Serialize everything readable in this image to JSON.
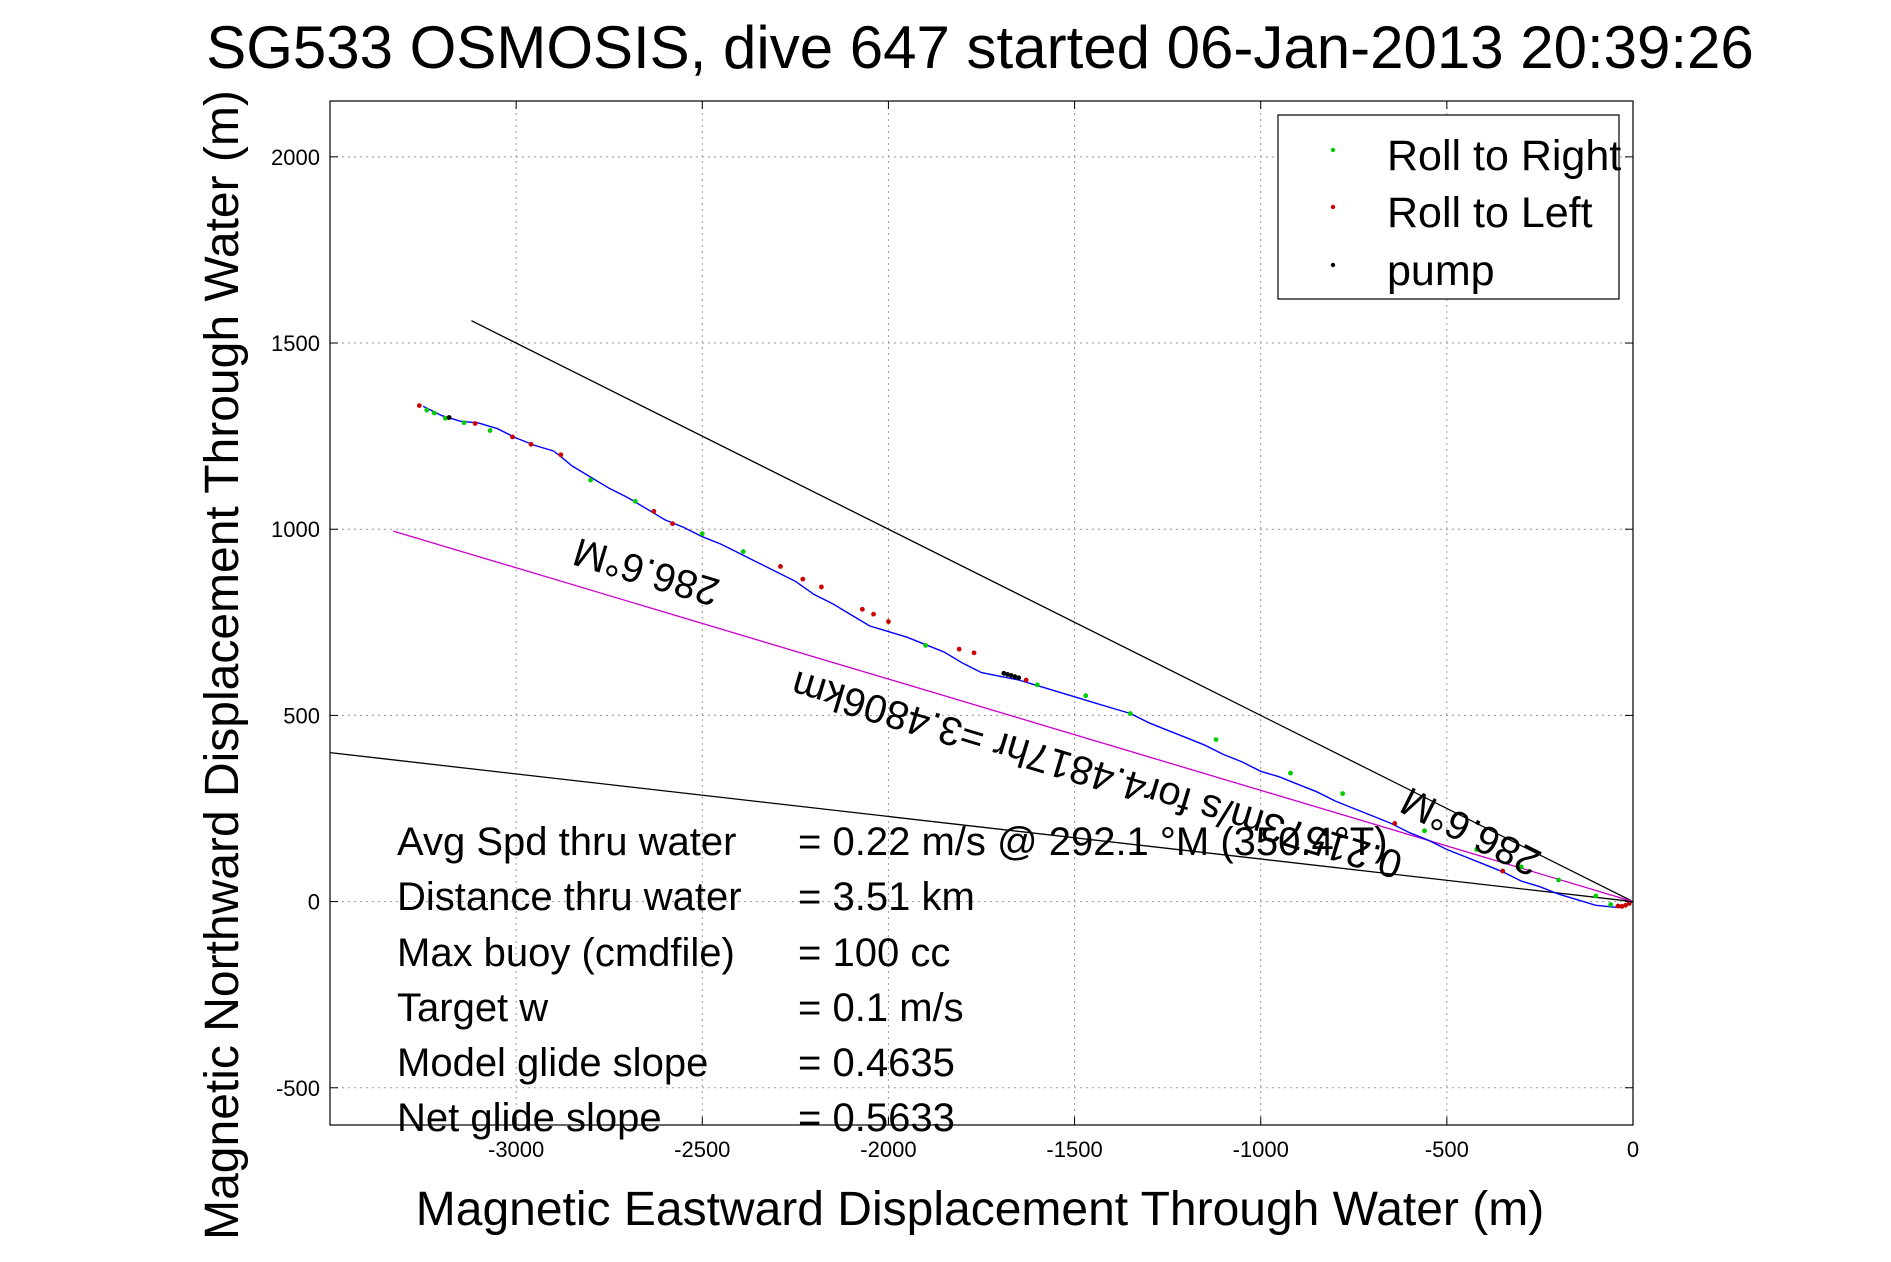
{
  "colors": {
    "track": "#0000ff",
    "roll_right": "#00cc00",
    "roll_left": "#cc0000",
    "pump": "#000000",
    "heading_line": "#cc00cc",
    "bound_line": "#000000",
    "grid": "#999999"
  },
  "chart_data": {
    "type": "line",
    "title": "SG533 OSMOSIS, dive 647 started 06-Jan-2013 20:39:26",
    "xlabel": "Magnetic Eastward Displacement Through Water (m)",
    "ylabel": "Magnetic Northward Displacement Through Water (m)",
    "xlim": [
      -3500,
      0
    ],
    "ylim": [
      -600,
      2150
    ],
    "xticks": [
      -3000,
      -2500,
      -2000,
      -1500,
      -1000,
      -500,
      0
    ],
    "xtick_labels": [
      "-3000",
      "-2500",
      "-2000",
      "-1500",
      "-1000",
      "-500",
      "0"
    ],
    "yticks": [
      -500,
      0,
      500,
      1000,
      1500,
      2000
    ],
    "ytick_labels": [
      "-500",
      "0",
      "500",
      "1000",
      "1500",
      "2000"
    ],
    "grid": true,
    "legend": {
      "placement": "top-right",
      "entries": [
        "Roll to Right",
        "Roll to Left",
        "pump"
      ]
    },
    "series": [
      {
        "name": "track",
        "x": [
          -3250,
          -3200,
          -3150,
          -3100,
          -3050,
          -3000,
          -2950,
          -2900,
          -2880,
          -2850,
          -2800,
          -2750,
          -2700,
          -2650,
          -2600,
          -2550,
          -2500,
          -2450,
          -2400,
          -2350,
          -2300,
          -2250,
          -2200,
          -2150,
          -2100,
          -2050,
          -2000,
          -1950,
          -1900,
          -1850,
          -1800,
          -1750,
          -1700,
          -1650,
          -1600,
          -1550,
          -1500,
          -1450,
          -1400,
          -1350,
          -1300,
          -1250,
          -1200,
          -1150,
          -1100,
          -1050,
          -1000,
          -950,
          -900,
          -850,
          -800,
          -750,
          -700,
          -650,
          -600,
          -550,
          -500,
          -450,
          -400,
          -350,
          -300,
          -250,
          -200,
          -150,
          -100,
          -50,
          -20,
          0
        ],
        "y": [
          1330,
          1305,
          1290,
          1285,
          1270,
          1245,
          1225,
          1210,
          1195,
          1170,
          1140,
          1110,
          1085,
          1055,
          1025,
          1005,
          980,
          960,
          935,
          910,
          885,
          860,
          825,
          800,
          770,
          740,
          725,
          710,
          690,
          670,
          640,
          615,
          605,
          595,
          580,
          565,
          550,
          535,
          520,
          505,
          480,
          460,
          440,
          420,
          395,
          375,
          350,
          335,
          315,
          295,
          270,
          250,
          230,
          210,
          185,
          165,
          140,
          120,
          100,
          80,
          55,
          40,
          20,
          5,
          -10,
          -15,
          -10,
          0
        ]
      }
    ],
    "markers": {
      "roll_right": {
        "name": "Roll to Right",
        "x": [
          -3240,
          -3220,
          -3190,
          -3140,
          -3070,
          -2800,
          -2680,
          -2500,
          -2390,
          -1900,
          -1600,
          -1470,
          -1350,
          -1120,
          -920,
          -780,
          -560,
          -420,
          -300,
          -200,
          -100,
          -60
        ],
        "y": [
          1320,
          1312,
          1298,
          1286,
          1265,
          1132,
          1075,
          988,
          940,
          688,
          582,
          553,
          505,
          435,
          345,
          290,
          190,
          140,
          93,
          58,
          15,
          -8
        ]
      },
      "roll_left": {
        "name": "Roll to Left",
        "x": [
          -3260,
          -3110,
          -3010,
          -2960,
          -2880,
          -2630,
          -2580,
          -2290,
          -2230,
          -2180,
          -2070,
          -2040,
          -2000,
          -1810,
          -1770,
          -1630,
          -640,
          -350,
          -40,
          -30,
          -20,
          -10
        ],
        "y": [
          1332,
          1284,
          1248,
          1228,
          1200,
          1048,
          1015,
          900,
          866,
          845,
          785,
          772,
          752,
          678,
          668,
          595,
          210,
          82,
          -12,
          -13,
          -10,
          -5
        ]
      },
      "pump": {
        "name": "pump",
        "x": [
          -1690,
          -1680,
          -1670,
          -1660,
          -1650,
          -3180
        ],
        "y": [
          613,
          610,
          607,
          604,
          601,
          1300
        ]
      }
    },
    "lines": {
      "upper_bound": {
        "x": [
          -3120,
          0
        ],
        "y": [
          1560,
          0
        ]
      },
      "lower_bound": {
        "x": [
          -3500,
          0
        ],
        "y": [
          400,
          0
        ]
      },
      "heading": {
        "x": [
          -3330,
          0
        ],
        "y": [
          995,
          0
        ]
      }
    },
    "annotations": [
      {
        "text": "286.6°M",
        "x": -2640,
        "y": 920,
        "rotate": 196.7
      },
      {
        "text": "0.21573m/s for4.4817hr =3.4806km",
        "x": -1430,
        "y": 375,
        "rotate": 196.7
      },
      {
        "text": "286.6°M",
        "x": -420,
        "y": 220,
        "rotate": 206.6
      }
    ]
  },
  "stats": [
    {
      "label": "Avg Spd thru water",
      "value": "=  0.22 m/s @ 292.1 °M (350.4°T)"
    },
    {
      "label": "Distance thru water",
      "value": "=  3.51 km"
    },
    {
      "label": "Max buoy (cmdfile)",
      "value": "= 100 cc"
    },
    {
      "label": "Target w",
      "value": "= 0.1 m/s"
    },
    {
      "label": "Model glide slope",
      "value": "= 0.4635"
    },
    {
      "label": "Net glide slope",
      "value": "= 0.5633"
    }
  ]
}
